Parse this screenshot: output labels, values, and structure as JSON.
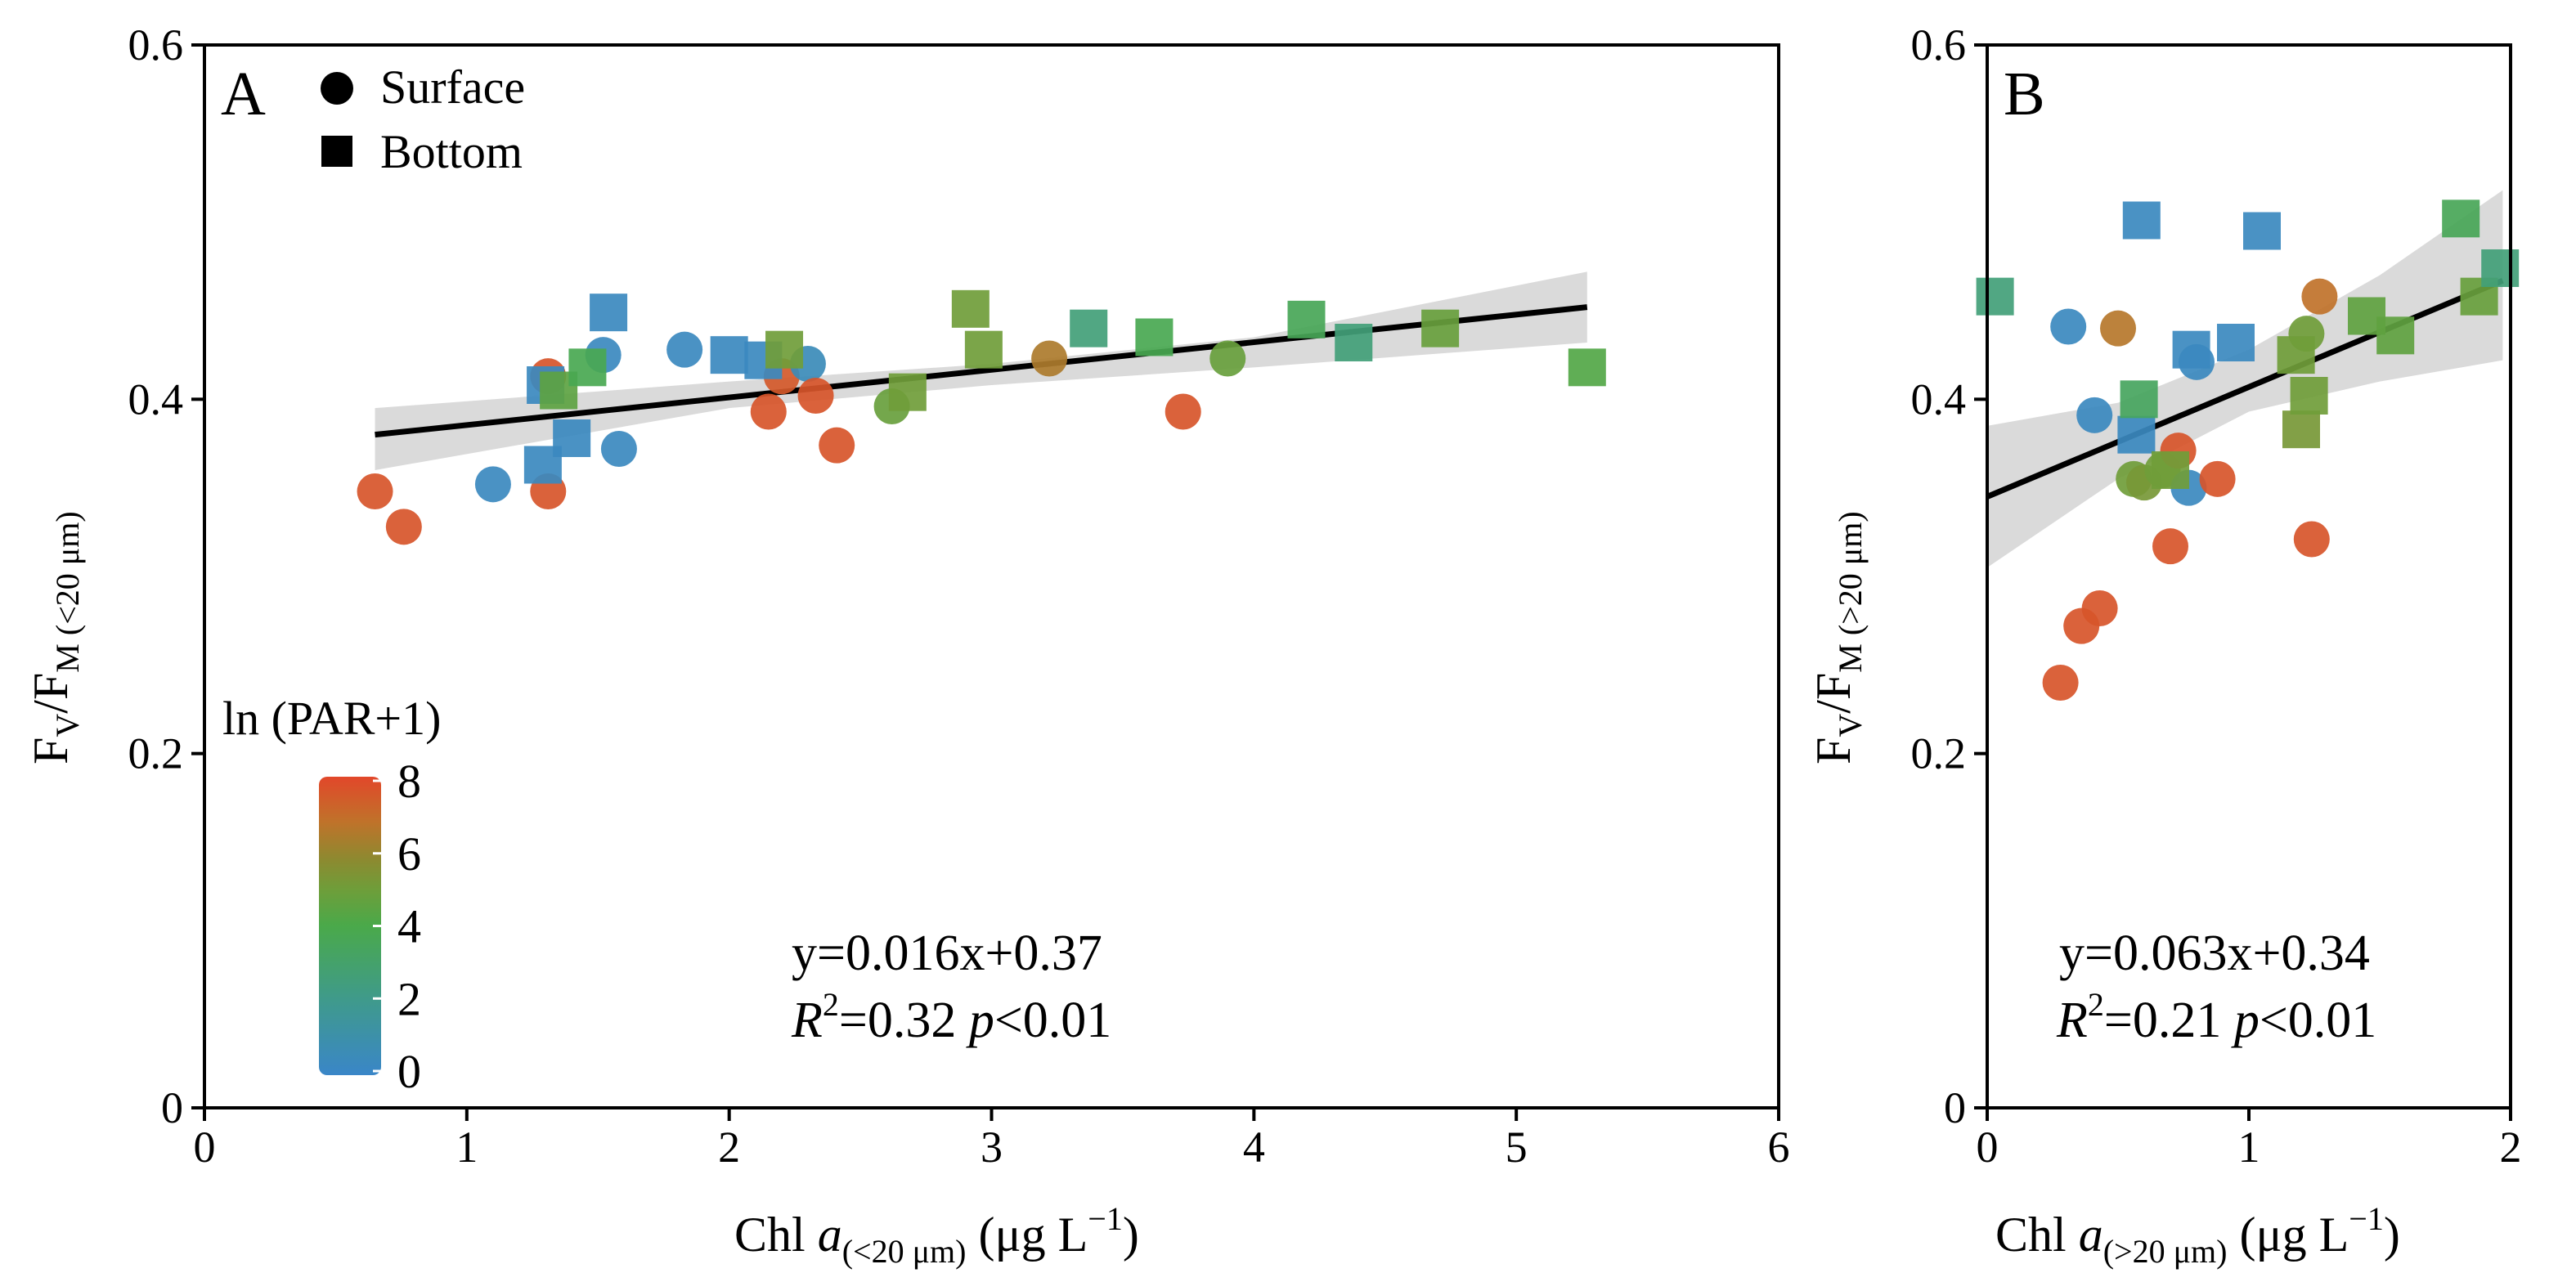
{
  "colors": {
    "scale": [
      "#3a86c8",
      "#3f9a8c",
      "#4aa94a",
      "#6e9e3a",
      "#8c8a30",
      "#c0722a",
      "#e2472a"
    ],
    "regression_line": "#000000",
    "confidence_band": "#d3d3d3"
  },
  "legend": {
    "surface_label": "Surface",
    "bottom_label": "Bottom",
    "colorbar_title": "ln (PAR+1)",
    "colorbar_ticks": [
      "0",
      "2",
      "4",
      "6",
      "8"
    ],
    "colorbar_range": [
      0,
      8
    ]
  },
  "chart_data": [
    {
      "panel": "A",
      "type": "scatter",
      "ylabel": {
        "main": "F",
        "s1": "V",
        "mid": "/F",
        "s2": "M",
        "s3": " (<20 μm)"
      },
      "xlabel": {
        "main": "Chl ",
        "italic": "a",
        "sub": "(<20 μm)",
        "unit": " (μg L",
        "exp": "−1",
        "close": ")"
      },
      "xlim": [
        0,
        6
      ],
      "ylim": [
        0,
        0.6
      ],
      "xticks": [
        "0",
        "1",
        "2",
        "3",
        "4",
        "5",
        "6"
      ],
      "yticks": [
        "0",
        "0.2",
        "0.4",
        "0.6"
      ],
      "equation": "y=0.016x+0.37",
      "r2_value": "=0.32",
      "p_value": "<0.01",
      "regression": {
        "x": [
          0.65,
          5.27
        ],
        "y": [
          0.38,
          0.452
        ]
      },
      "band_upper": [
        [
          0.65,
          0.395
        ],
        [
          2.0,
          0.41
        ],
        [
          3.0,
          0.42
        ],
        [
          4.0,
          0.435
        ],
        [
          5.27,
          0.472
        ]
      ],
      "band_lower": [
        [
          0.65,
          0.36
        ],
        [
          2.0,
          0.395
        ],
        [
          3.0,
          0.408
        ],
        [
          4.0,
          0.418
        ],
        [
          5.27,
          0.432
        ]
      ],
      "surface_points": [
        {
          "x": 0.65,
          "y": 0.348,
          "c": 7.6
        },
        {
          "x": 0.76,
          "y": 0.328,
          "c": 7.6
        },
        {
          "x": 1.1,
          "y": 0.352,
          "c": 0.3
        },
        {
          "x": 1.31,
          "y": 0.348,
          "c": 7.6
        },
        {
          "x": 1.31,
          "y": 0.413,
          "c": 7.6
        },
        {
          "x": 1.52,
          "y": 0.425,
          "c": 0.3
        },
        {
          "x": 1.58,
          "y": 0.372,
          "c": 0.3
        },
        {
          "x": 1.83,
          "y": 0.428,
          "c": 0.3
        },
        {
          "x": 2.15,
          "y": 0.393,
          "c": 7.6
        },
        {
          "x": 2.2,
          "y": 0.413,
          "c": 7.5
        },
        {
          "x": 2.3,
          "y": 0.42,
          "c": 0.5
        },
        {
          "x": 2.33,
          "y": 0.402,
          "c": 7.6
        },
        {
          "x": 2.41,
          "y": 0.374,
          "c": 7.6
        },
        {
          "x": 2.62,
          "y": 0.396,
          "c": 4.8
        },
        {
          "x": 3.22,
          "y": 0.423,
          "c": 6.4
        },
        {
          "x": 3.73,
          "y": 0.393,
          "c": 7.6
        },
        {
          "x": 3.9,
          "y": 0.423,
          "c": 4.8
        }
      ],
      "bottom_points": [
        {
          "x": 1.29,
          "y": 0.363,
          "c": 0.3
        },
        {
          "x": 1.3,
          "y": 0.408,
          "c": 0.3
        },
        {
          "x": 1.35,
          "y": 0.405,
          "c": 4.5
        },
        {
          "x": 1.4,
          "y": 0.378,
          "c": 0.3
        },
        {
          "x": 1.46,
          "y": 0.418,
          "c": 3.8
        },
        {
          "x": 1.54,
          "y": 0.449,
          "c": 0.3
        },
        {
          "x": 2.0,
          "y": 0.425,
          "c": 0.3
        },
        {
          "x": 2.13,
          "y": 0.422,
          "c": 0.3
        },
        {
          "x": 2.21,
          "y": 0.428,
          "c": 5.0
        },
        {
          "x": 2.68,
          "y": 0.404,
          "c": 5.0
        },
        {
          "x": 2.92,
          "y": 0.451,
          "c": 5.0
        },
        {
          "x": 2.97,
          "y": 0.428,
          "c": 5.0
        },
        {
          "x": 3.37,
          "y": 0.44,
          "c": 2.6
        },
        {
          "x": 3.62,
          "y": 0.435,
          "c": 3.8
        },
        {
          "x": 4.2,
          "y": 0.445,
          "c": 3.6
        },
        {
          "x": 4.38,
          "y": 0.432,
          "c": 2.6
        },
        {
          "x": 4.71,
          "y": 0.44,
          "c": 4.8
        },
        {
          "x": 5.27,
          "y": 0.418,
          "c": 4.2
        }
      ]
    },
    {
      "panel": "B",
      "type": "scatter",
      "ylabel": {
        "main": "F",
        "s1": "V",
        "mid": "/F",
        "s2": "M",
        "s3": " (>20 μm)"
      },
      "xlabel": {
        "main": "Chl ",
        "italic": "a",
        "sub": "(>20 μm)",
        "unit": " (μg L",
        "exp": "−1",
        "close": ")"
      },
      "xlim": [
        0,
        2
      ],
      "ylim": [
        0,
        0.6
      ],
      "xticks": [
        "0",
        "1",
        "2"
      ],
      "yticks": [
        "0",
        "0.2",
        "0.4",
        "0.6"
      ],
      "equation": "y=0.063x+0.34",
      "r2_value": "=0.21",
      "p_value": "<0.01",
      "regression": {
        "x": [
          0.0,
          1.97
        ],
        "y": [
          0.345,
          0.467
        ]
      },
      "band_upper": [
        [
          0.0,
          0.385
        ],
        [
          0.5,
          0.398
        ],
        [
          1.0,
          0.428
        ],
        [
          1.5,
          0.47
        ],
        [
          1.97,
          0.518
        ]
      ],
      "band_lower": [
        [
          0.0,
          0.305
        ],
        [
          0.5,
          0.355
        ],
        [
          1.0,
          0.393
        ],
        [
          1.5,
          0.41
        ],
        [
          1.97,
          0.422
        ]
      ],
      "surface_points": [
        {
          "x": 0.28,
          "y": 0.24,
          "c": 7.6
        },
        {
          "x": 0.31,
          "y": 0.441,
          "c": 0.3
        },
        {
          "x": 0.36,
          "y": 0.272,
          "c": 7.6
        },
        {
          "x": 0.41,
          "y": 0.391,
          "c": 0.3
        },
        {
          "x": 0.43,
          "y": 0.282,
          "c": 7.6
        },
        {
          "x": 0.5,
          "y": 0.44,
          "c": 6.6
        },
        {
          "x": 0.56,
          "y": 0.355,
          "c": 5.0
        },
        {
          "x": 0.6,
          "y": 0.353,
          "c": 5.2
        },
        {
          "x": 0.67,
          "y": 0.36,
          "c": 5.0
        },
        {
          "x": 0.7,
          "y": 0.317,
          "c": 7.6
        },
        {
          "x": 0.73,
          "y": 0.371,
          "c": 7.6
        },
        {
          "x": 0.77,
          "y": 0.35,
          "c": 0.3
        },
        {
          "x": 0.8,
          "y": 0.421,
          "c": 0.3
        },
        {
          "x": 0.88,
          "y": 0.355,
          "c": 7.6
        },
        {
          "x": 1.22,
          "y": 0.437,
          "c": 5.0
        },
        {
          "x": 1.24,
          "y": 0.321,
          "c": 7.6
        },
        {
          "x": 1.27,
          "y": 0.458,
          "c": 6.8
        }
      ],
      "bottom_points": [
        {
          "x": 0.03,
          "y": 0.458,
          "c": 2.6
        },
        {
          "x": 0.57,
          "y": 0.38,
          "c": 0.3
        },
        {
          "x": 0.58,
          "y": 0.4,
          "c": 3.4
        },
        {
          "x": 0.59,
          "y": 0.501,
          "c": 0.3
        },
        {
          "x": 0.7,
          "y": 0.36,
          "c": 5.0
        },
        {
          "x": 0.78,
          "y": 0.428,
          "c": 0.3
        },
        {
          "x": 0.95,
          "y": 0.432,
          "c": 0.3
        },
        {
          "x": 1.05,
          "y": 0.495,
          "c": 0.3
        },
        {
          "x": 1.18,
          "y": 0.425,
          "c": 5.0
        },
        {
          "x": 1.2,
          "y": 0.383,
          "c": 5.2
        },
        {
          "x": 1.23,
          "y": 0.402,
          "c": 5.0
        },
        {
          "x": 1.45,
          "y": 0.447,
          "c": 4.6
        },
        {
          "x": 1.56,
          "y": 0.436,
          "c": 4.6
        },
        {
          "x": 1.81,
          "y": 0.502,
          "c": 3.6
        },
        {
          "x": 1.88,
          "y": 0.458,
          "c": 4.8
        },
        {
          "x": 1.96,
          "y": 0.474,
          "c": 2.6
        }
      ]
    }
  ]
}
